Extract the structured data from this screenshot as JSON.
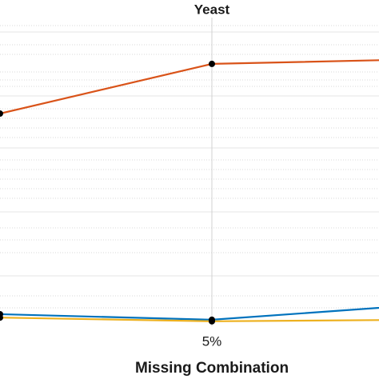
{
  "chart_data": {
    "type": "line",
    "title": "Yeast",
    "x_label": "Missing Combination",
    "categories": [
      null,
      "5%",
      null
    ],
    "ylim": [
      0,
      100
    ],
    "series": [
      {
        "name": "orange",
        "color": "#d95319",
        "values": [
          68.9,
          85.0,
          86.5
        ]
      },
      {
        "name": "blue",
        "color": "#0072bd",
        "values": [
          3.9,
          2.1,
          7.0
        ]
      },
      {
        "name": "yellow",
        "color": "#edb120",
        "values": [
          2.8,
          1.6,
          2.1
        ]
      }
    ]
  }
}
